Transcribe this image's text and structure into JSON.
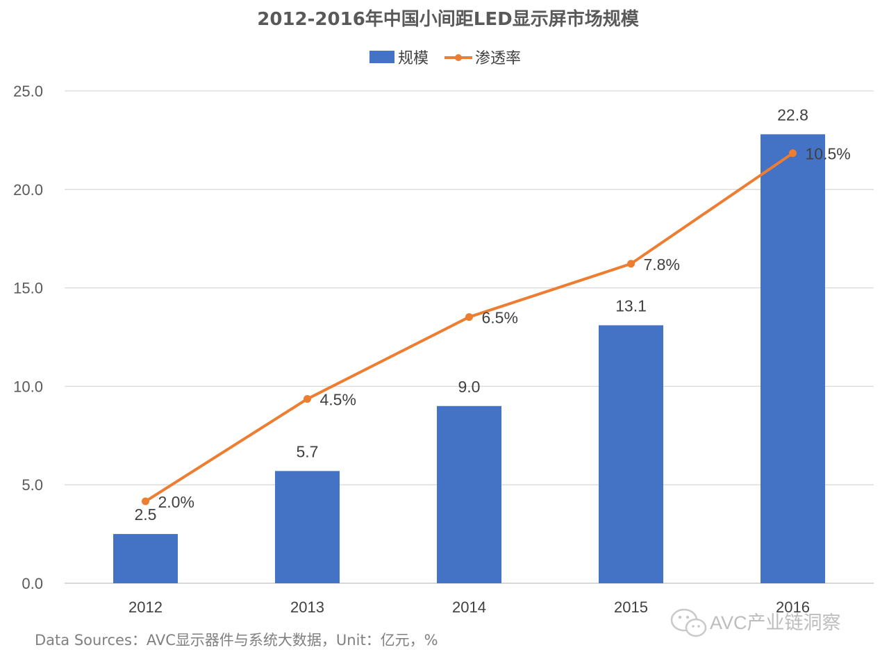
{
  "chart_data": {
    "type": "bar",
    "title": "2012-2016年中国小间距LED显示屏市场规模",
    "categories": [
      "2012",
      "2013",
      "2014",
      "2015",
      "2016"
    ],
    "series": [
      {
        "name": "规模",
        "type": "bar",
        "color": "#4472C4",
        "values": [
          2.5,
          5.7,
          9.0,
          13.1,
          22.8
        ],
        "labels": [
          "2.5",
          "5.7",
          "9.0",
          "13.1",
          "22.8"
        ]
      },
      {
        "name": "渗透率",
        "type": "line",
        "color": "#ED7D31",
        "values": [
          2.0,
          4.5,
          6.5,
          7.8,
          10.5
        ],
        "labels": [
          "2.0%",
          "4.5%",
          "6.5%",
          "7.8%",
          "10.5%"
        ],
        "unit": "%"
      }
    ],
    "y_ticks": [
      "0.0",
      "5.0",
      "10.0",
      "15.0",
      "20.0",
      "25.0"
    ],
    "ylim": [
      0,
      25
    ],
    "legend": "top-center",
    "grid": true
  },
  "footer": {
    "source": "Data Sources：AVC显示器件与系统大数据，Unit：亿元，%"
  },
  "watermark": {
    "text": "AVC产业链洞察",
    "icon": "wechat-icon"
  }
}
